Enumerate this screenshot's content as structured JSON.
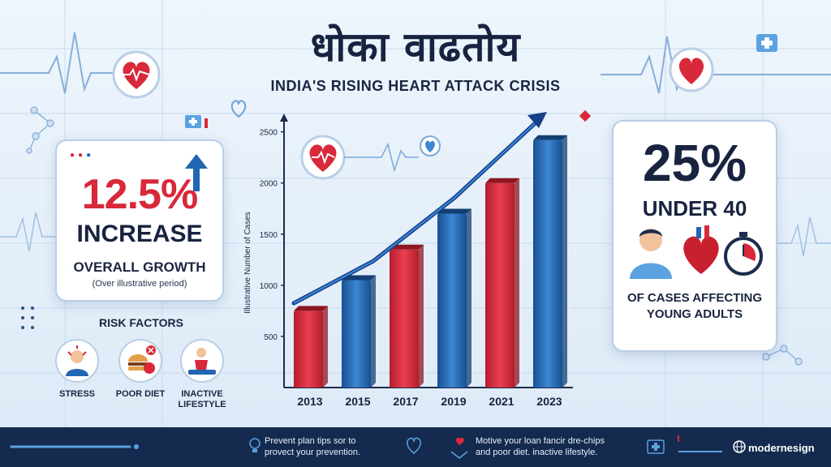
{
  "header": {
    "headline": "धोका वाढतोय",
    "subtitle": "INDIA'S RISING HEART ATTACK CRISIS"
  },
  "left_card": {
    "percent": "12.5%",
    "headline": "INCREASE",
    "label": "OVERALL GROWTH",
    "note": "(Over illustrative period)"
  },
  "risk_factors": {
    "title": "RISK FACTORS",
    "items": [
      {
        "label": "STRESS",
        "icon": "stress-person-icon"
      },
      {
        "label": "POOR DIET",
        "icon": "burger-apple-icon"
      },
      {
        "label": "INACTIVE LIFESTYLE",
        "icon": "inactive-person-icon"
      }
    ]
  },
  "right_card": {
    "percent": "25%",
    "headline": "UNDER 40",
    "label_line1": "OF CASES AFFECTING",
    "label_line2": "YOUNG ADULTS",
    "icons": [
      "young-man-icon",
      "heart-organ-icon",
      "stopwatch-icon"
    ]
  },
  "chart_data": {
    "type": "bar",
    "title": "",
    "xlabel": "",
    "ylabel": "Illustrative Number of Cases",
    "categories": [
      "2013",
      "2015",
      "2017",
      "2019",
      "2021",
      "2023"
    ],
    "values": [
      750,
      1050,
      1350,
      1700,
      2000,
      2420
    ],
    "ylim": [
      0,
      2600
    ],
    "yticks": [
      500,
      1000,
      1500,
      2000,
      2500
    ],
    "bar_colors": [
      "#d9283a",
      "#2166b1",
      "#d9283a",
      "#2166b1",
      "#d9283a",
      "#2166b1"
    ],
    "trend": "rising arrow",
    "grid": false
  },
  "footer": {
    "text1_line1": "Prevent plan tips sor to",
    "text1_line2": "provect your prevention.",
    "text2_line1": "Motive your loan fancir dre-chips",
    "text2_line2": "and poor diet. inactive lifestyle.",
    "brand": "modernesign"
  },
  "colors": {
    "red": "#d9283a",
    "blue": "#2166b1",
    "navy": "#17233f",
    "footer_bg": "#142b4f"
  }
}
